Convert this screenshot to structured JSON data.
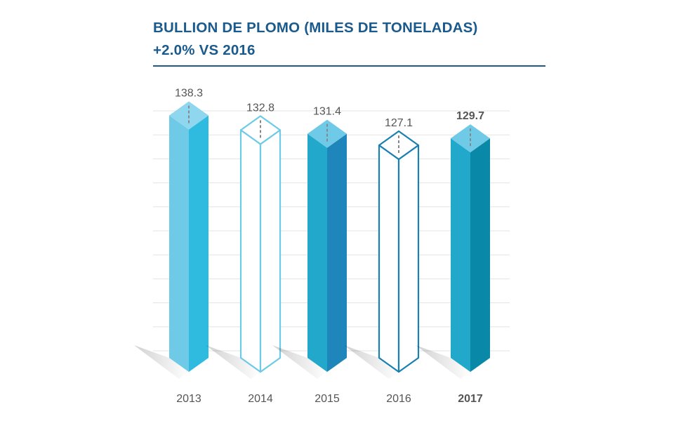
{
  "colors": {
    "title": "#1a5a8c",
    "rule": "#1a5a8c",
    "grid": "#e3e3e3",
    "label_text": "#555555",
    "leader": "#888888"
  },
  "chart_data": {
    "type": "bar",
    "style": "3d-prism",
    "title": "BULLION DE PLOMO (MILES DE TONELADAS)",
    "subtitle": "+2.0% VS 2016",
    "xlabel": "",
    "ylabel": "",
    "ylim": [
      50,
      140
    ],
    "grid": true,
    "categories": [
      "2013",
      "2014",
      "2015",
      "2016",
      "2017"
    ],
    "values": [
      138.3,
      132.8,
      131.4,
      127.1,
      129.7
    ],
    "value_labels": [
      "138.3",
      "132.8",
      "131.4",
      "127.1",
      "129.7"
    ],
    "highlight": "2017",
    "bars": [
      {
        "fill": "solid",
        "front": "#6ecae6",
        "side": "#2fbbe0",
        "top": "#8ed7ee"
      },
      {
        "fill": "outline",
        "stroke": "#6ecae6"
      },
      {
        "fill": "solid",
        "front": "#22a8cb",
        "side": "#1e86bb",
        "top": "#6ecae6"
      },
      {
        "fill": "outline",
        "stroke": "#1a7fb1"
      },
      {
        "fill": "solid",
        "front": "#22a8cb",
        "side": "#0a88a8",
        "top": "#6ecae6"
      }
    ]
  }
}
